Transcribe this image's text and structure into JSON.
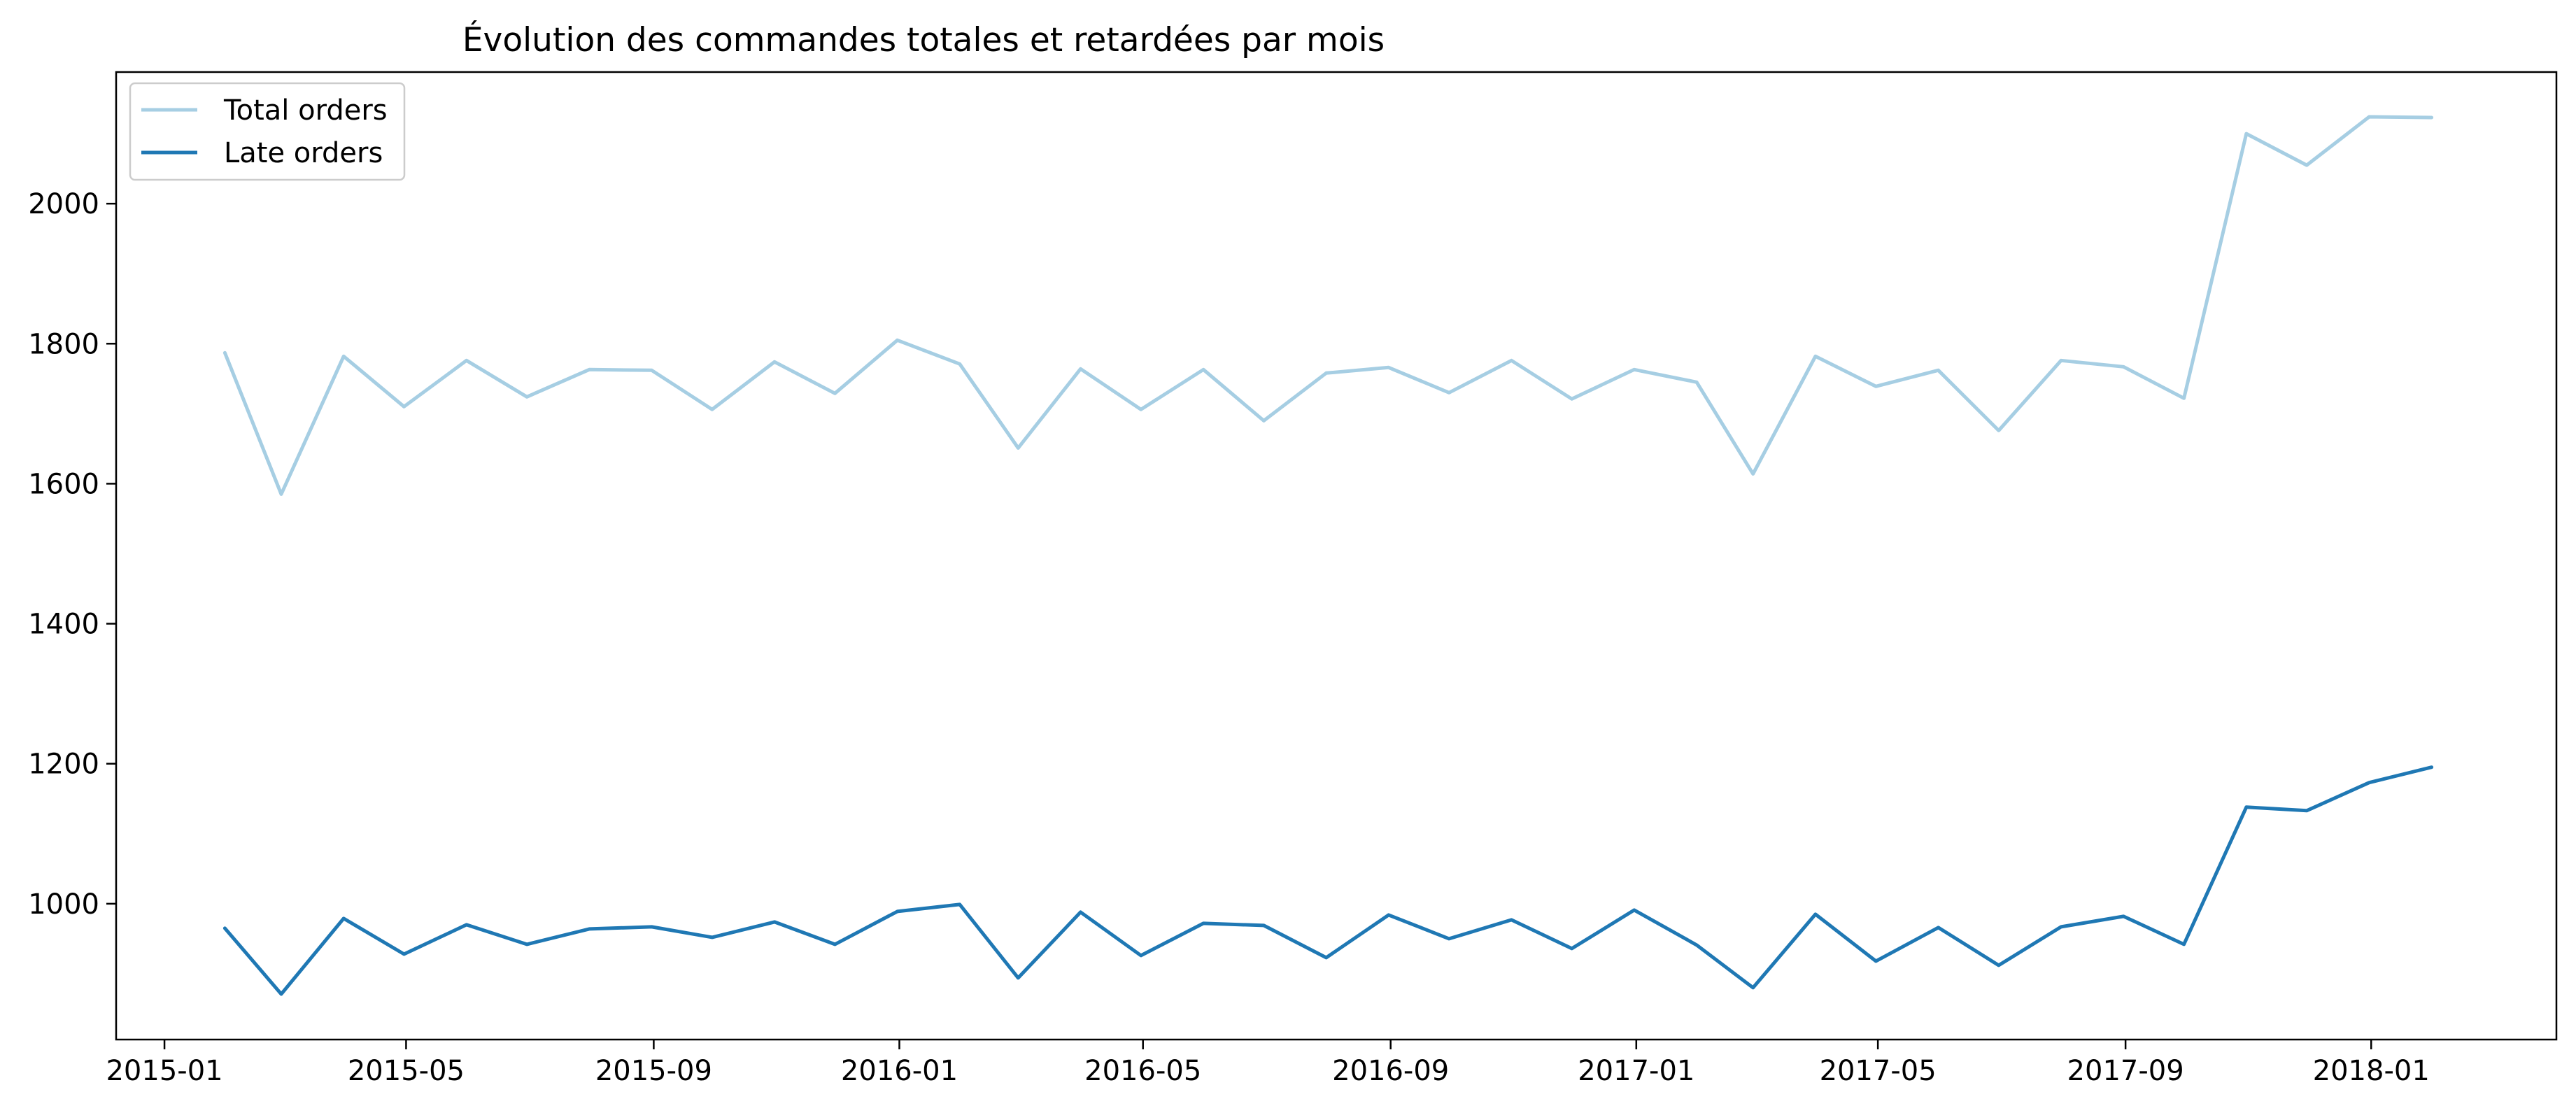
{
  "chart_data": {
    "type": "line",
    "title": "Évolution des commandes totales et retardées par mois",
    "xlabel": "",
    "ylabel": "",
    "x": [
      "2015-01-31",
      "2015-02-28",
      "2015-03-31",
      "2015-04-30",
      "2015-05-31",
      "2015-06-30",
      "2015-07-31",
      "2015-08-31",
      "2015-09-30",
      "2015-10-31",
      "2015-11-30",
      "2015-12-31",
      "2016-01-31",
      "2016-02-29",
      "2016-03-31",
      "2016-04-30",
      "2016-05-31",
      "2016-06-30",
      "2016-07-31",
      "2016-08-31",
      "2016-09-30",
      "2016-10-31",
      "2016-11-30",
      "2016-12-31",
      "2017-01-31",
      "2017-02-28",
      "2017-03-31",
      "2017-04-30",
      "2017-05-31",
      "2017-06-30",
      "2017-07-31",
      "2017-08-31",
      "2017-09-30",
      "2017-10-31",
      "2017-11-30",
      "2017-12-31",
      "2018-01-31"
    ],
    "series": [
      {
        "name": "Total orders",
        "color": "#a6cee3",
        "values": [
          1787,
          1585,
          1782,
          1710,
          1776,
          1724,
          1763,
          1762,
          1706,
          1774,
          1729,
          1805,
          1771,
          1651,
          1764,
          1706,
          1763,
          1690,
          1758,
          1766,
          1730,
          1776,
          1721,
          1763,
          1745,
          1614,
          1782,
          1739,
          1762,
          1676,
          1776,
          1767,
          1722,
          2100,
          2055,
          2124,
          2123
        ]
      },
      {
        "name": "Late orders",
        "color": "#1f78b4",
        "values": [
          965,
          871,
          979,
          928,
          970,
          942,
          964,
          967,
          952,
          974,
          942,
          989,
          999,
          894,
          988,
          926,
          972,
          969,
          923,
          984,
          950,
          977,
          936,
          991,
          941,
          880,
          985,
          918,
          966,
          912,
          967,
          982,
          942,
          1138,
          1133,
          1173,
          1195
        ]
      }
    ],
    "x_ticks": [
      "2015-01",
      "2015-05",
      "2015-09",
      "2016-01",
      "2016-05",
      "2016-09",
      "2017-01",
      "2017-05",
      "2017-09",
      "2018-01"
    ],
    "y_ticks": [
      1000,
      1200,
      1400,
      1600,
      1800,
      2000
    ],
    "xlim": [
      "2014-12-08",
      "2018-04-03"
    ],
    "ylim": [
      806,
      2188
    ],
    "grid": false,
    "legend_position": "upper left"
  }
}
